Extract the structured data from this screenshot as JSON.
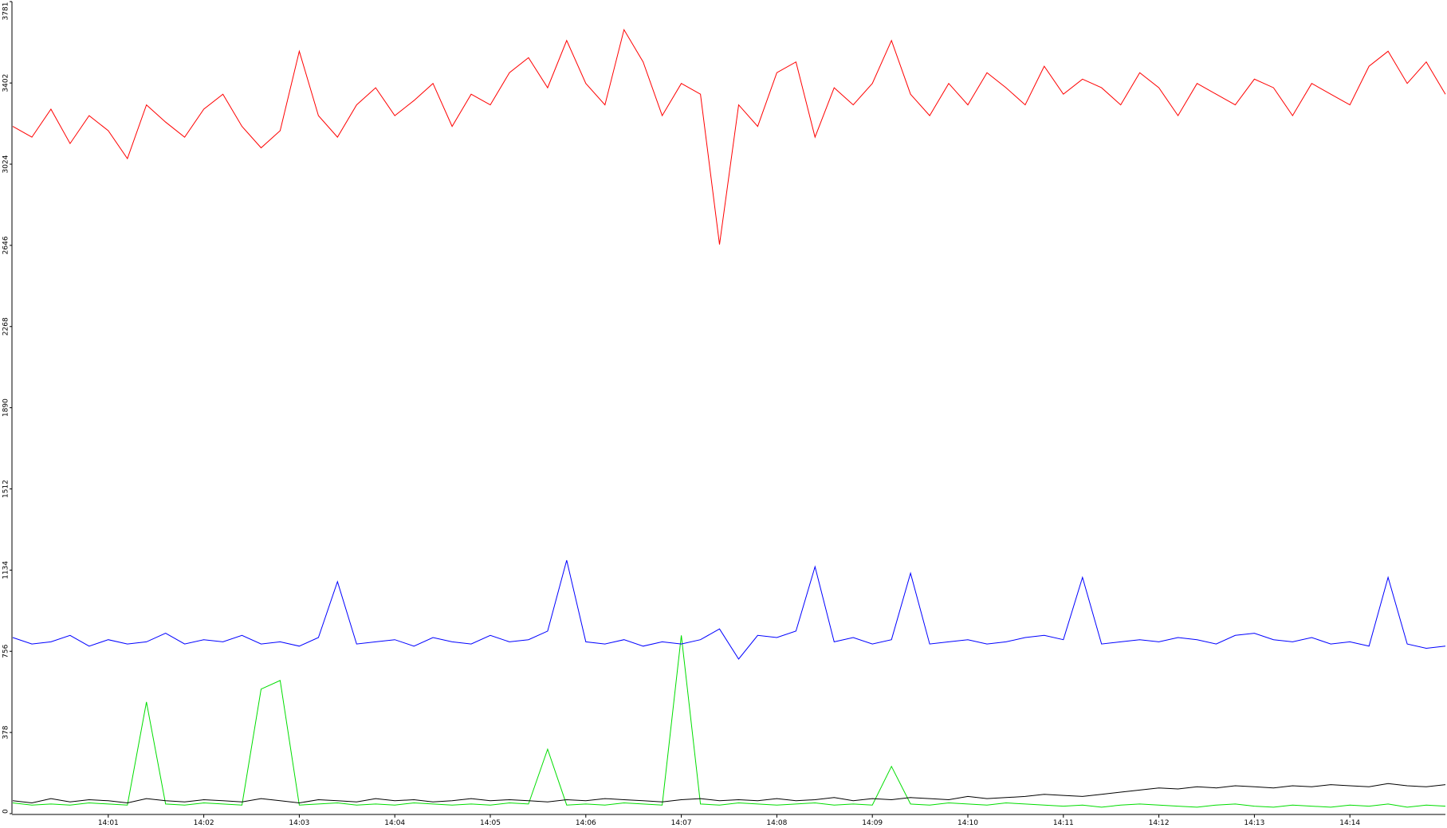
{
  "chart_data": {
    "type": "line",
    "categories": [
      null,
      null,
      null,
      null,
      null,
      "14:01",
      null,
      null,
      null,
      null,
      "14:02",
      null,
      null,
      null,
      null,
      "14:03",
      null,
      null,
      null,
      null,
      "14:04",
      null,
      null,
      null,
      null,
      "14:05",
      null,
      null,
      null,
      null,
      "14:06",
      null,
      null,
      null,
      null,
      "14:07",
      null,
      null,
      null,
      null,
      "14:08",
      null,
      null,
      null,
      null,
      "14:09",
      null,
      null,
      null,
      null,
      "14:10",
      null,
      null,
      null,
      null,
      "14:11",
      null,
      null,
      null,
      null,
      "14:12",
      null,
      null,
      null,
      null,
      "14:13",
      null,
      null,
      null,
      null,
      "14:14",
      null,
      null,
      null,
      null,
      null
    ],
    "ylim": [
      0,
      3781
    ],
    "yticks": [
      0,
      378,
      756,
      1134,
      1512,
      1890,
      2268,
      2646,
      3024,
      3402,
      3781
    ],
    "series": [
      {
        "color": "#ff0000",
        "values": [
          3200,
          3150,
          3280,
          3120,
          3250,
          3180,
          3050,
          3300,
          3220,
          3150,
          3280,
          3350,
          3200,
          3100,
          3180,
          3550,
          3250,
          3150,
          3300,
          3380,
          3250,
          3320,
          3400,
          3200,
          3350,
          3300,
          3450,
          3520,
          3380,
          3600,
          3400,
          3300,
          3650,
          3500,
          3250,
          3400,
          3350,
          2650,
          3300,
          3200,
          3450,
          3500,
          3150,
          3380,
          3300,
          3400,
          3600,
          3350,
          3250,
          3400,
          3300,
          3450,
          3380,
          3300,
          3480,
          3350,
          3420,
          3380,
          3300,
          3450,
          3380,
          3250,
          3400,
          3350,
          3300,
          3420,
          3380,
          3250,
          3400,
          3350,
          3300,
          3480,
          3550,
          3400,
          3500,
          3350
        ]
      },
      {
        "color": "#0000ff",
        "values": [
          820,
          790,
          800,
          830,
          780,
          810,
          790,
          800,
          840,
          790,
          810,
          800,
          830,
          790,
          800,
          780,
          820,
          1080,
          790,
          800,
          810,
          780,
          820,
          800,
          790,
          830,
          800,
          810,
          850,
          1180,
          800,
          790,
          810,
          780,
          800,
          790,
          810,
          860,
          720,
          830,
          820,
          850,
          1150,
          800,
          820,
          790,
          810,
          1120,
          790,
          800,
          810,
          790,
          800,
          820,
          830,
          810,
          1100,
          790,
          800,
          810,
          800,
          820,
          810,
          790,
          830,
          840,
          810,
          800,
          820,
          790,
          800,
          780,
          1100,
          790,
          770,
          780
        ]
      },
      {
        "color": "#000000",
        "values": [
          60,
          50,
          70,
          55,
          65,
          60,
          50,
          70,
          60,
          55,
          65,
          60,
          55,
          70,
          60,
          50,
          65,
          60,
          55,
          70,
          60,
          65,
          55,
          60,
          70,
          60,
          65,
          60,
          55,
          65,
          60,
          70,
          65,
          60,
          55,
          65,
          70,
          60,
          65,
          60,
          70,
          60,
          65,
          75,
          60,
          70,
          65,
          75,
          70,
          65,
          80,
          70,
          75,
          80,
          90,
          85,
          80,
          90,
          100,
          110,
          120,
          115,
          125,
          120,
          130,
          125,
          120,
          130,
          125,
          135,
          130,
          125,
          140,
          130,
          125,
          135
        ]
      },
      {
        "color": "#00dd00",
        "values": [
          50,
          40,
          45,
          40,
          50,
          45,
          40,
          520,
          45,
          40,
          50,
          45,
          40,
          580,
          620,
          40,
          45,
          50,
          40,
          45,
          40,
          50,
          45,
          40,
          45,
          40,
          50,
          45,
          300,
          40,
          45,
          40,
          50,
          45,
          40,
          830,
          45,
          40,
          50,
          45,
          40,
          45,
          50,
          40,
          45,
          40,
          220,
          45,
          40,
          50,
          45,
          40,
          50,
          45,
          40,
          35,
          40,
          30,
          40,
          45,
          40,
          35,
          30,
          40,
          45,
          35,
          30,
          40,
          35,
          30,
          40,
          35,
          45,
          30,
          40,
          35
        ]
      }
    ]
  }
}
